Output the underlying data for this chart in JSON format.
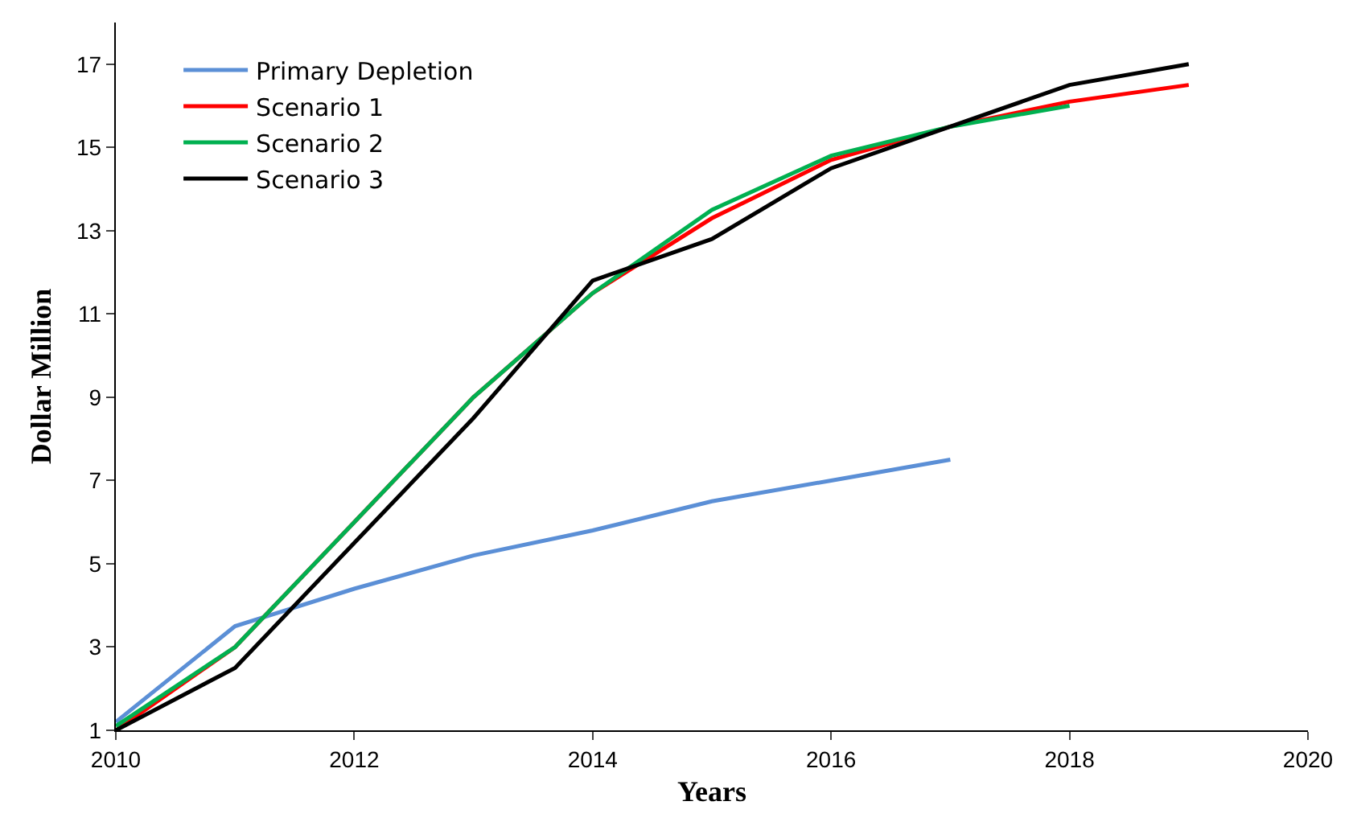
{
  "chart_data": {
    "type": "line",
    "xlabel": "Years",
    "ylabel": "Dollar Million",
    "x": [
      2010,
      2011,
      2012,
      2013,
      2014,
      2015,
      2016,
      2017,
      2018,
      2019
    ],
    "xlim": [
      2010,
      2020
    ],
    "xticks": [
      2010,
      2012,
      2014,
      2016,
      2018,
      2020
    ],
    "ylim": [
      1,
      18
    ],
    "yticks": [
      1,
      3,
      5,
      7,
      9,
      11,
      13,
      15,
      17
    ],
    "legend": "top left",
    "marker": "none",
    "line_style": "solid",
    "series": [
      {
        "name": "Primary Depletion",
        "color": "#5b8fd6",
        "x": [
          2010,
          2011,
          2012,
          2013,
          2014,
          2015,
          2016,
          2017
        ],
        "values": [
          1.2,
          3.5,
          4.4,
          5.2,
          5.8,
          6.5,
          7.0,
          7.5
        ]
      },
      {
        "name": "Scenario 1",
        "color": "#ff0000",
        "values": [
          1.0,
          3.0,
          6.0,
          9.0,
          11.5,
          13.3,
          14.7,
          15.5,
          16.1,
          16.5
        ]
      },
      {
        "name": "Scenario 2",
        "color": "#00b050",
        "x": [
          2010,
          2011,
          2012,
          2013,
          2014,
          2015,
          2016,
          2017,
          2018
        ],
        "values": [
          1.1,
          3.0,
          6.0,
          9.0,
          11.5,
          13.5,
          14.8,
          15.5,
          16.0
        ]
      },
      {
        "name": "Scenario 3",
        "color": "#000000",
        "values": [
          1.0,
          2.5,
          5.5,
          8.5,
          11.8,
          12.8,
          14.5,
          15.5,
          16.5,
          17.0
        ]
      }
    ]
  }
}
